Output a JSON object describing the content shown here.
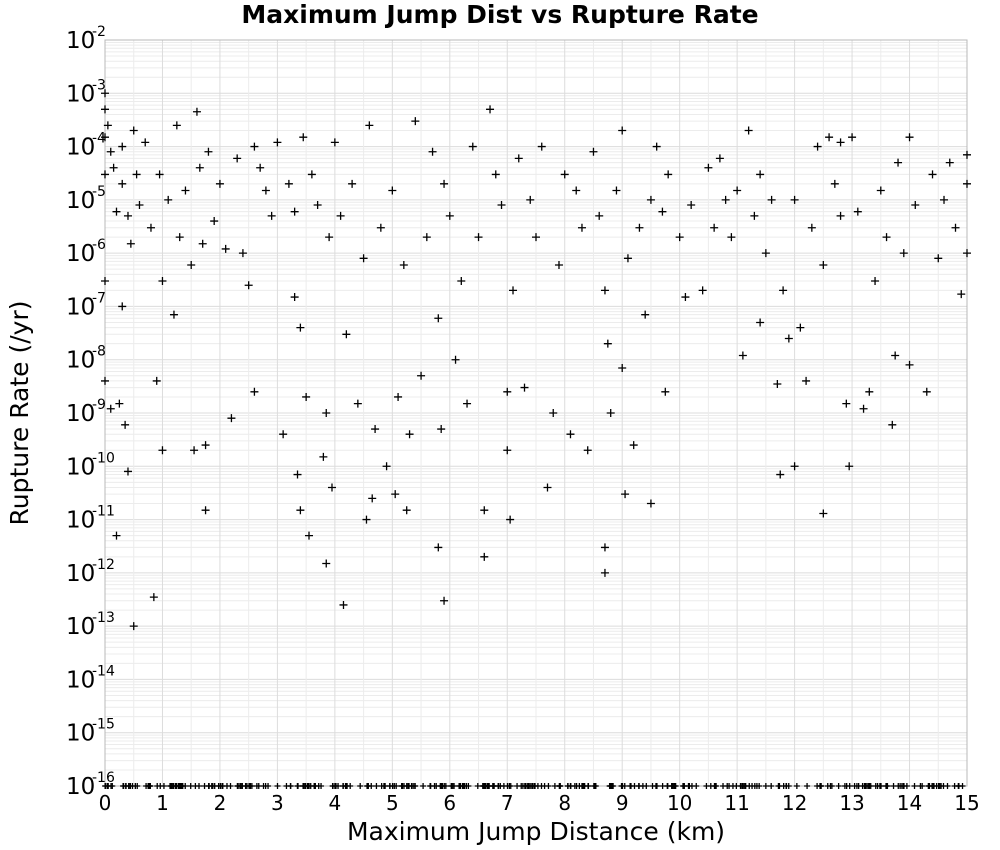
{
  "chart_data": {
    "type": "scatter",
    "title": "Maximum Jump Dist vs Rupture Rate",
    "xlabel": "Maximum Jump Distance (km)",
    "ylabel": "Rupture Rate (/yr)",
    "xlim": [
      0,
      15
    ],
    "ylim": [
      1e-16,
      0.01
    ],
    "yscale": "log",
    "grid": true,
    "marker": "+",
    "marker_color": "#000000",
    "x_ticks": [
      "0",
      "1",
      "2",
      "3",
      "4",
      "5",
      "6",
      "7",
      "8",
      "9",
      "10",
      "11",
      "12",
      "13",
      "14",
      "15"
    ],
    "y_ticks": [
      {
        "base": "10",
        "exp": "-2"
      },
      {
        "base": "10",
        "exp": "-3"
      },
      {
        "base": "10",
        "exp": "-4"
      },
      {
        "base": "10",
        "exp": "-5"
      },
      {
        "base": "10",
        "exp": "-6"
      },
      {
        "base": "10",
        "exp": "-7"
      },
      {
        "base": "10",
        "exp": "-8"
      },
      {
        "base": "10",
        "exp": "-9"
      },
      {
        "base": "10",
        "exp": "-10"
      },
      {
        "base": "10",
        "exp": "-11"
      },
      {
        "base": "10",
        "exp": "-12"
      },
      {
        "base": "10",
        "exp": "-13"
      },
      {
        "base": "10",
        "exp": "-14"
      },
      {
        "base": "10",
        "exp": "-15"
      },
      {
        "base": "10",
        "exp": "-16"
      }
    ],
    "series": [
      {
        "points": [
          [
            0.0,
            0.001
          ],
          [
            0.0,
            0.0005
          ],
          [
            0.0,
            0.00015
          ],
          [
            0.0,
            3e-05
          ],
          [
            0.0,
            3e-07
          ],
          [
            0.0,
            4e-09
          ],
          [
            0.05,
            0.00025
          ],
          [
            0.1,
            8e-05
          ],
          [
            0.1,
            1.2e-09
          ],
          [
            0.15,
            4e-05
          ],
          [
            0.2,
            6e-06
          ],
          [
            0.2,
            5e-12
          ],
          [
            0.25,
            1.5e-09
          ],
          [
            0.3,
            0.0001
          ],
          [
            0.3,
            2e-05
          ],
          [
            0.3,
            1e-07
          ],
          [
            0.35,
            6e-10
          ],
          [
            0.4,
            8e-11
          ],
          [
            0.4,
            5e-06
          ],
          [
            0.45,
            1.5e-06
          ],
          [
            0.5,
            1e-13
          ],
          [
            0.5,
            0.0002
          ],
          [
            0.55,
            3e-05
          ],
          [
            0.6,
            8e-06
          ],
          [
            0.7,
            0.00012
          ],
          [
            0.8,
            3e-06
          ],
          [
            0.85,
            3.5e-13
          ],
          [
            0.9,
            4e-09
          ],
          [
            0.95,
            3e-05
          ],
          [
            1.0,
            2e-10
          ],
          [
            1.0,
            3e-07
          ],
          [
            1.1,
            1e-05
          ],
          [
            1.2,
            7e-08
          ],
          [
            1.25,
            0.00025
          ],
          [
            1.3,
            2e-06
          ],
          [
            1.4,
            1.5e-05
          ],
          [
            1.5,
            6e-07
          ],
          [
            1.55,
            2e-10
          ],
          [
            1.6,
            0.00045
          ],
          [
            1.65,
            4e-05
          ],
          [
            1.7,
            1.5e-06
          ],
          [
            1.75,
            2.5e-10
          ],
          [
            1.75,
            1.5e-11
          ],
          [
            1.8,
            8e-05
          ],
          [
            1.9,
            4e-06
          ],
          [
            2.0,
            2e-05
          ],
          [
            2.1,
            1.2e-06
          ],
          [
            2.2,
            8e-10
          ],
          [
            2.3,
            6e-05
          ],
          [
            2.4,
            1e-06
          ],
          [
            2.5,
            2.5e-07
          ],
          [
            2.6,
            2.5e-09
          ],
          [
            2.6,
            0.0001
          ],
          [
            2.7,
            4e-05
          ],
          [
            2.8,
            1.5e-05
          ],
          [
            2.9,
            5e-06
          ],
          [
            3.0,
            0.00012
          ],
          [
            3.1,
            4e-10
          ],
          [
            3.2,
            2e-05
          ],
          [
            3.3,
            6e-06
          ],
          [
            3.3,
            1.5e-07
          ],
          [
            3.35,
            7e-11
          ],
          [
            3.4,
            1.5e-11
          ],
          [
            3.4,
            4e-08
          ],
          [
            3.45,
            0.00015
          ],
          [
            3.5,
            2e-09
          ],
          [
            3.55,
            5e-12
          ],
          [
            3.6,
            3e-05
          ],
          [
            3.7,
            8e-06
          ],
          [
            3.8,
            1.5e-10
          ],
          [
            3.85,
            1.5e-12
          ],
          [
            3.85,
            1e-09
          ],
          [
            3.9,
            2e-06
          ],
          [
            3.95,
            4e-11
          ],
          [
            4.0,
            0.00012
          ],
          [
            4.1,
            5e-06
          ],
          [
            4.15,
            2.5e-13
          ],
          [
            4.2,
            3e-08
          ],
          [
            4.3,
            2e-05
          ],
          [
            4.4,
            1.5e-09
          ],
          [
            4.5,
            8e-07
          ],
          [
            4.55,
            1e-11
          ],
          [
            4.6,
            0.00025
          ],
          [
            4.65,
            2.5e-11
          ],
          [
            4.7,
            5e-10
          ],
          [
            4.8,
            3e-06
          ],
          [
            4.9,
            1e-10
          ],
          [
            5.0,
            1.5e-05
          ],
          [
            5.05,
            3e-11
          ],
          [
            5.1,
            2e-09
          ],
          [
            5.2,
            6e-07
          ],
          [
            5.25,
            1.5e-11
          ],
          [
            5.3,
            4e-10
          ],
          [
            5.4,
            0.0003
          ],
          [
            5.5,
            5e-09
          ],
          [
            5.6,
            2e-06
          ],
          [
            5.7,
            8e-05
          ],
          [
            5.8,
            3e-12
          ],
          [
            5.8,
            6e-08
          ],
          [
            5.85,
            5e-10
          ],
          [
            5.9,
            2e-05
          ],
          [
            5.9,
            3e-13
          ],
          [
            6.0,
            5e-06
          ],
          [
            6.1,
            1e-08
          ],
          [
            6.2,
            3e-07
          ],
          [
            6.3,
            1.5e-09
          ],
          [
            6.4,
            0.0001
          ],
          [
            6.5,
            2e-06
          ],
          [
            6.6,
            1.5e-11
          ],
          [
            6.6,
            2e-12
          ],
          [
            6.7,
            0.0005
          ],
          [
            6.8,
            3e-05
          ],
          [
            6.9,
            8e-06
          ],
          [
            7.0,
            2e-10
          ],
          [
            7.0,
            2.5e-09
          ],
          [
            7.05,
            1e-11
          ],
          [
            7.1,
            2e-07
          ],
          [
            7.2,
            6e-05
          ],
          [
            7.3,
            3e-09
          ],
          [
            7.4,
            1e-05
          ],
          [
            7.5,
            2e-06
          ],
          [
            7.6,
            0.0001
          ],
          [
            7.7,
            4e-11
          ],
          [
            7.8,
            1e-09
          ],
          [
            7.9,
            6e-07
          ],
          [
            8.0,
            3e-05
          ],
          [
            8.1,
            4e-10
          ],
          [
            8.2,
            1.5e-05
          ],
          [
            8.3,
            3e-06
          ],
          [
            8.4,
            2e-10
          ],
          [
            8.5,
            8e-05
          ],
          [
            8.6,
            5e-06
          ],
          [
            8.7,
            2e-07
          ],
          [
            8.7,
            1e-12
          ],
          [
            8.7,
            3e-12
          ],
          [
            8.75,
            2e-08
          ],
          [
            8.8,
            1e-09
          ],
          [
            8.9,
            1.5e-05
          ],
          [
            9.0,
            0.0002
          ],
          [
            9.0,
            7e-09
          ],
          [
            9.05,
            3e-11
          ],
          [
            9.1,
            8e-07
          ],
          [
            9.2,
            2.5e-10
          ],
          [
            9.3,
            3e-06
          ],
          [
            9.4,
            7e-08
          ],
          [
            9.5,
            2e-11
          ],
          [
            9.5,
            1e-05
          ],
          [
            9.6,
            0.0001
          ],
          [
            9.7,
            6e-06
          ],
          [
            9.75,
            2.5e-09
          ],
          [
            9.8,
            3e-05
          ],
          [
            10.0,
            2e-06
          ],
          [
            10.1,
            1.5e-07
          ],
          [
            10.2,
            8e-06
          ],
          [
            10.4,
            2e-07
          ],
          [
            10.5,
            4e-05
          ],
          [
            10.6,
            3e-06
          ],
          [
            10.7,
            6e-05
          ],
          [
            10.8,
            1e-05
          ],
          [
            10.9,
            2e-06
          ],
          [
            11.0,
            1.5e-05
          ],
          [
            11.1,
            1.2e-08
          ],
          [
            11.2,
            0.0002
          ],
          [
            11.3,
            5e-06
          ],
          [
            11.4,
            5e-08
          ],
          [
            11.4,
            3e-05
          ],
          [
            11.5,
            1e-06
          ],
          [
            11.6,
            1e-05
          ],
          [
            11.7,
            3.5e-09
          ],
          [
            11.75,
            7e-11
          ],
          [
            11.8,
            2e-07
          ],
          [
            11.9,
            2.5e-08
          ],
          [
            12.0,
            1e-05
          ],
          [
            12.0,
            1e-10
          ],
          [
            12.1,
            4e-08
          ],
          [
            12.2,
            4e-09
          ],
          [
            12.3,
            3e-06
          ],
          [
            12.4,
            0.0001
          ],
          [
            12.5,
            6e-07
          ],
          [
            12.5,
            1.3e-11
          ],
          [
            12.6,
            0.00015
          ],
          [
            12.7,
            2e-05
          ],
          [
            12.8,
            5e-06
          ],
          [
            12.8,
            0.00012
          ],
          [
            12.9,
            1.5e-09
          ],
          [
            12.95,
            1e-10
          ],
          [
            13.0,
            0.00015
          ],
          [
            13.1,
            6e-06
          ],
          [
            13.2,
            1.2e-09
          ],
          [
            13.3,
            2.5e-09
          ],
          [
            13.4,
            3e-07
          ],
          [
            13.5,
            1.5e-05
          ],
          [
            13.6,
            2e-06
          ],
          [
            13.7,
            6e-10
          ],
          [
            13.75,
            1.2e-08
          ],
          [
            13.8,
            5e-05
          ],
          [
            13.9,
            1e-06
          ],
          [
            14.0,
            8e-09
          ],
          [
            14.0,
            0.00015
          ],
          [
            14.1,
            8e-06
          ],
          [
            14.3,
            2.5e-09
          ],
          [
            14.4,
            3e-05
          ],
          [
            14.5,
            8e-07
          ],
          [
            14.6,
            1e-05
          ],
          [
            14.7,
            5e-05
          ],
          [
            14.8,
            3e-06
          ],
          [
            14.9,
            1.7e-07
          ],
          [
            15.0,
            7e-05
          ],
          [
            15.0,
            1e-06
          ],
          [
            15.0,
            2e-05
          ]
        ]
      }
    ]
  }
}
